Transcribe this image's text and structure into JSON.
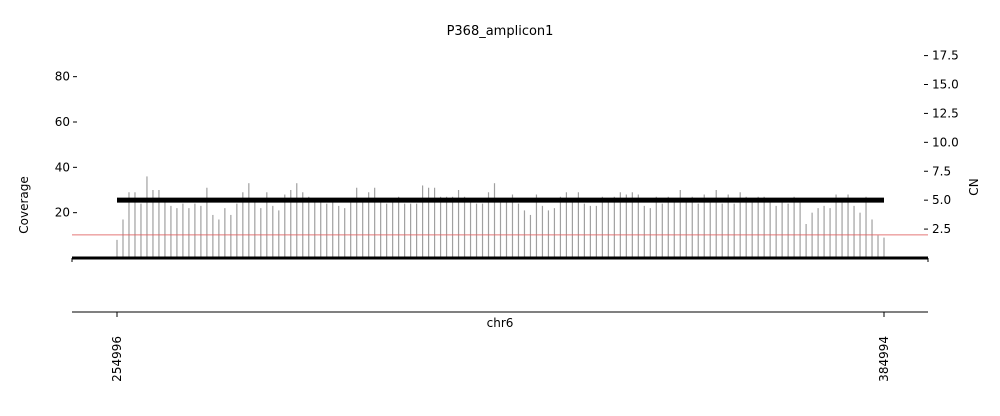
{
  "chart_data": {
    "type": "bar",
    "title": "P368_amplicon1",
    "ylabel_left": "Coverage",
    "ylabel_right": "CN",
    "xlabel": "chr6",
    "x_ticks": [
      "254996",
      "384994"
    ],
    "left_yticks": [
      "20",
      "40",
      "60",
      "80"
    ],
    "right_yticks": [
      "2.5",
      "5.0",
      "7.5",
      "10.0",
      "12.5",
      "15.0",
      "17.5"
    ],
    "x_range": [
      254996,
      384994
    ],
    "left_ylim": [
      0,
      92
    ],
    "right_ylim": [
      0,
      18.4
    ],
    "coverage_series": {
      "name": "",
      "color": "#a0a0a0",
      "x_start": 254996,
      "x_end": 384994,
      "values": [
        8,
        17,
        29,
        29,
        24,
        36,
        30,
        30,
        25,
        23,
        22,
        24,
        22,
        24,
        23,
        31,
        19,
        17,
        22,
        19,
        24,
        29,
        33,
        25,
        22,
        29,
        23,
        21,
        28,
        30,
        33,
        29,
        27,
        26,
        25,
        24,
        26,
        23,
        22,
        25,
        31,
        25,
        29,
        31,
        25,
        24,
        25,
        27,
        24,
        24,
        24,
        32,
        31,
        31,
        27,
        27,
        27,
        30,
        27,
        26,
        24,
        24,
        29,
        33,
        26,
        25,
        28,
        24,
        21,
        19,
        28,
        23,
        21,
        22,
        27,
        29,
        25,
        29,
        24,
        23,
        23,
        27,
        25,
        27,
        29,
        28,
        29,
        28,
        23,
        22,
        27,
        24,
        27,
        26,
        30,
        25,
        27,
        24,
        28,
        25,
        30,
        24,
        28,
        24,
        29,
        27,
        25,
        27,
        27,
        25,
        23,
        25,
        24,
        27,
        26,
        15,
        20,
        22,
        23,
        22,
        28,
        26,
        28,
        23,
        20,
        27,
        17,
        10,
        9
      ]
    },
    "cn_segment": {
      "cn": 5.0,
      "x_start": 254996,
      "x_end": 384994,
      "color": "#000000"
    },
    "threshold_line": {
      "cn": 2.0,
      "color": "#e06060"
    },
    "grid": false,
    "legend": "none"
  }
}
